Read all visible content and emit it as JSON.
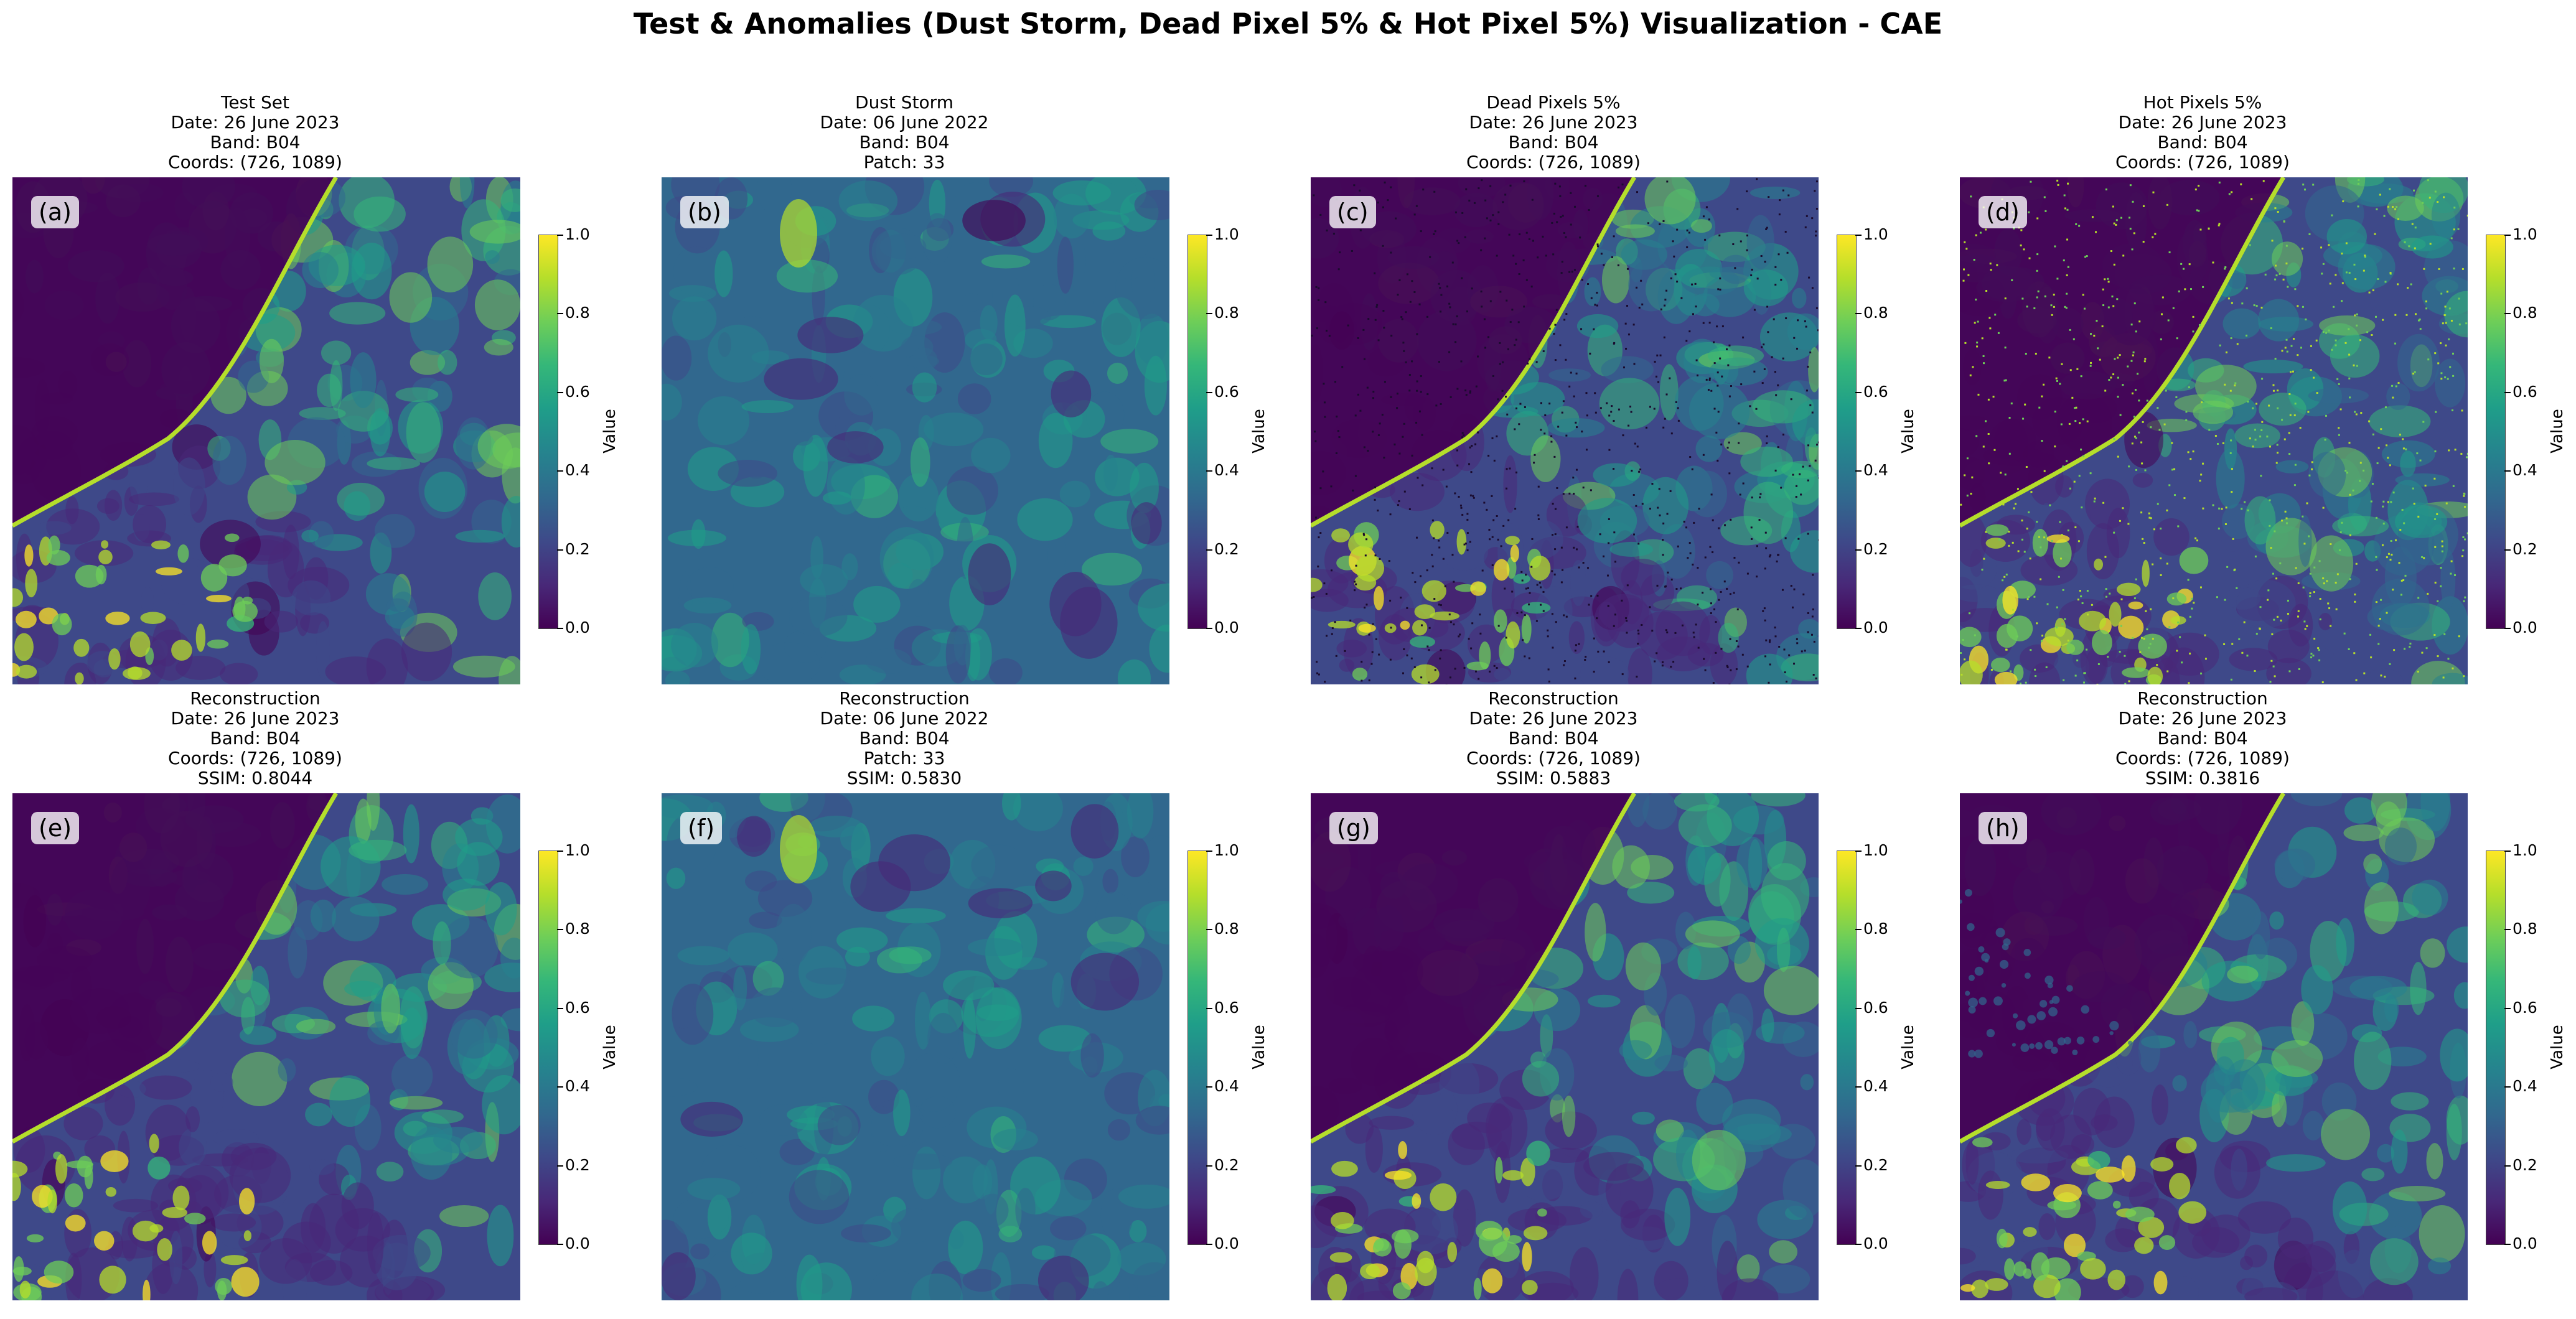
{
  "figure": {
    "title": "Test & Anomalies (Dust Storm, Dead Pixel 5% & Hot Pixel 5%) Visualization - CAE",
    "colorbar_label": "Value",
    "colorbar_ticks": [
      "0.0",
      "0.2",
      "0.4",
      "0.6",
      "0.8",
      "1.0"
    ],
    "colormap": "viridis"
  },
  "panels": [
    {
      "label": "(a)",
      "title_lines": [
        "Test Set",
        "Date: 26 June 2023",
        "Band: B04",
        "Coords: (726, 1089)"
      ],
      "kind": "test",
      "density": 0
    },
    {
      "label": "(b)",
      "title_lines": [
        "Dust Storm",
        "Date: 06 June 2022",
        "Band: B04",
        "Patch: 33"
      ],
      "kind": "dust",
      "density": 0
    },
    {
      "label": "(c)",
      "title_lines": [
        "Dead Pixels 5%",
        "Date: 26 June 2023",
        "Band: B04",
        "Coords: (726, 1089)"
      ],
      "kind": "dead",
      "density": 0.05
    },
    {
      "label": "(d)",
      "title_lines": [
        "Hot Pixels 5%",
        "Date: 26 June 2023",
        "Band: B04",
        "Coords: (726, 1089)"
      ],
      "kind": "hot",
      "density": 0.05
    },
    {
      "label": "(e)",
      "title_lines": [
        "Reconstruction",
        "Date: 26 June 2023",
        "Band: B04",
        "Coords: (726, 1089)",
        "SSIM: 0.8044"
      ],
      "kind": "recon",
      "density": 0
    },
    {
      "label": "(f)",
      "title_lines": [
        "Reconstruction",
        "Date: 06 June 2022",
        "Band: B04",
        "Patch: 33",
        "SSIM: 0.5830"
      ],
      "kind": "recon-dust",
      "density": 0
    },
    {
      "label": "(g)",
      "title_lines": [
        "Reconstruction",
        "Date: 26 June 2023",
        "Band: B04",
        "Coords: (726, 1089)",
        "SSIM: 0.5883"
      ],
      "kind": "recon",
      "density": 0
    },
    {
      "label": "(h)",
      "title_lines": [
        "Reconstruction",
        "Date: 26 June 2023",
        "Band: B04",
        "Coords: (726, 1089)",
        "SSIM: 0.3816"
      ],
      "kind": "recon-hot",
      "density": 0
    }
  ],
  "chart_data": {
    "type": "heatmap",
    "title": "Test & Anomalies (Dust Storm, Dead Pixel 5% & Hot Pixel 5%) Visualization - CAE",
    "colormap": "viridis",
    "clim": [
      0,
      1
    ],
    "colorbar_label": "Value",
    "colorbar_ticks": [
      0.0,
      0.2,
      0.4,
      0.6,
      0.8,
      1.0
    ],
    "ssim": {
      "(e)": 0.8044,
      "(f)": 0.583,
      "(g)": 0.5883,
      "(h)": 0.3816
    }
  }
}
